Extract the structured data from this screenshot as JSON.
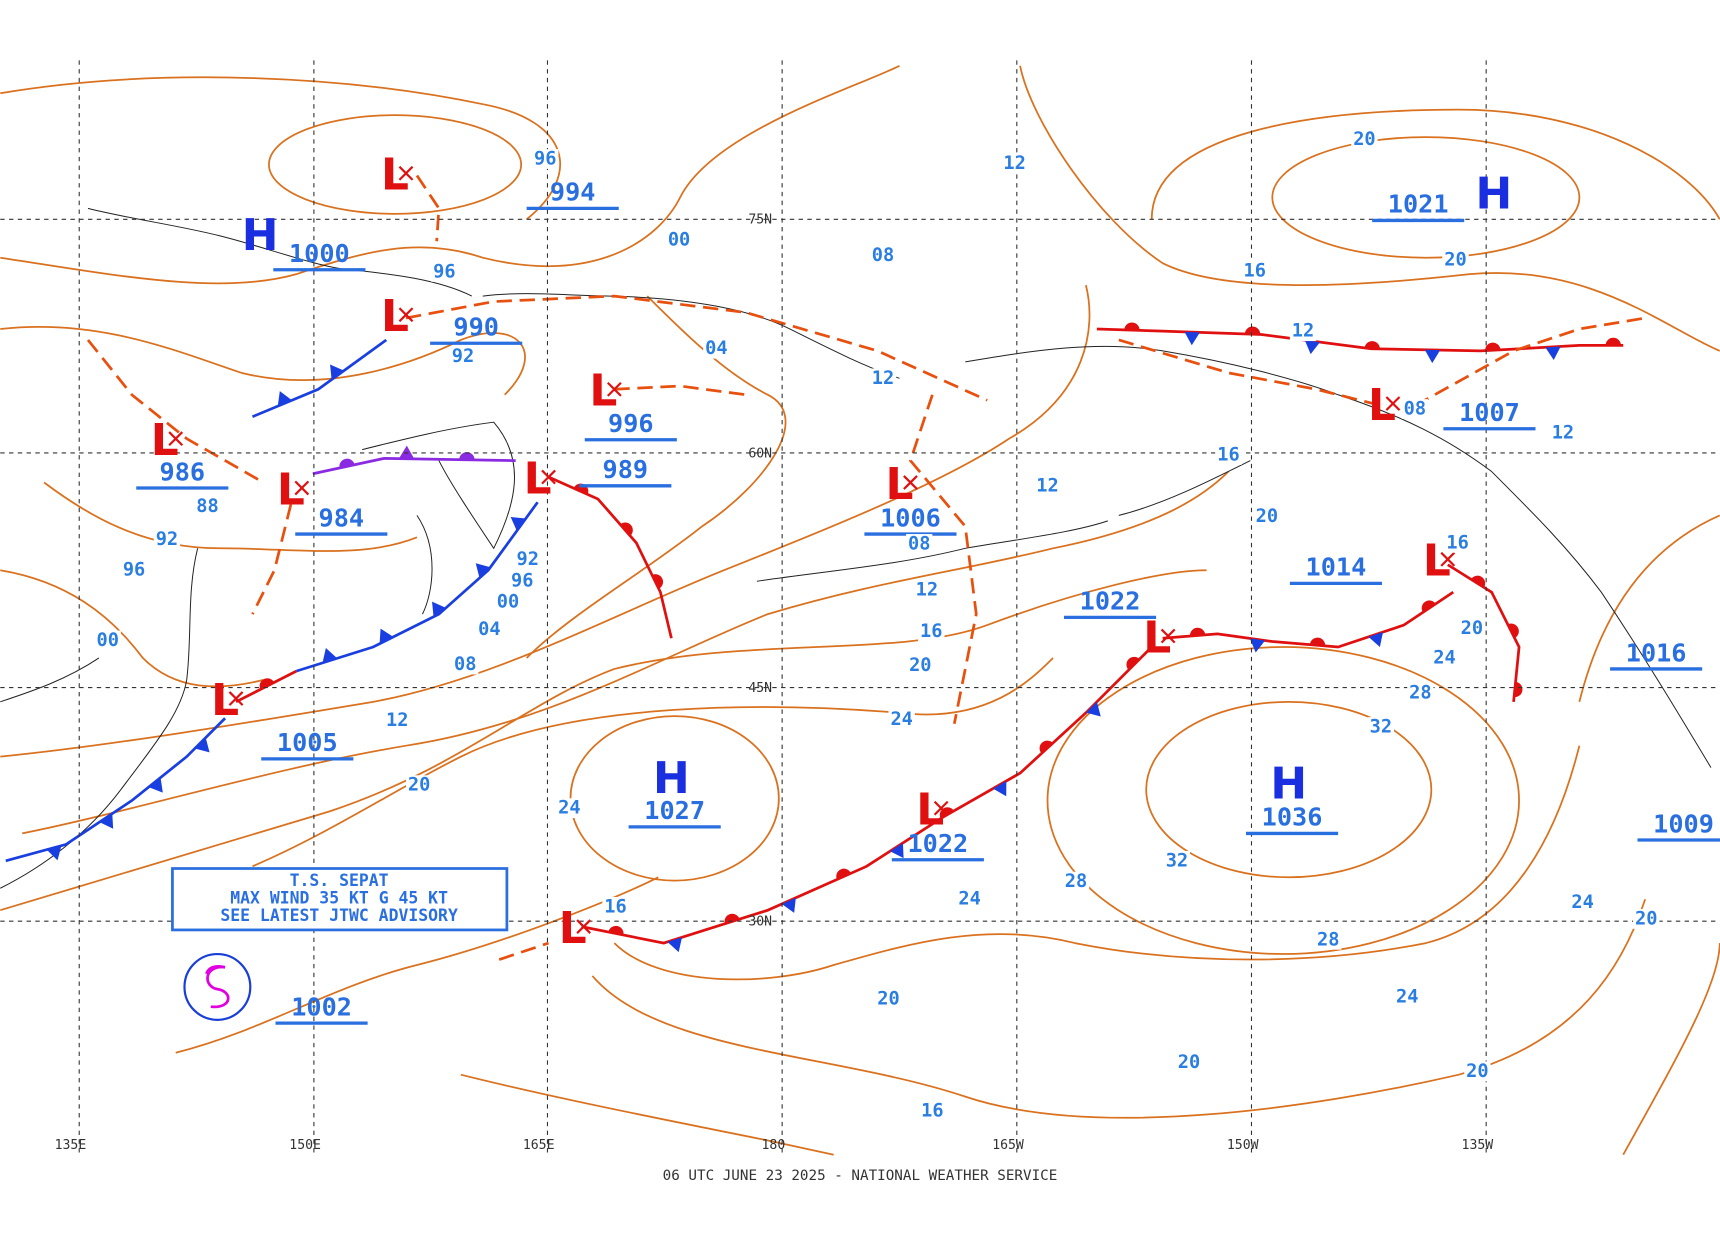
{
  "footer": "06 UTC JUNE 23 2025 - NATIONAL WEATHER SERVICE",
  "advisory": [
    "T.S. SEPAT",
    "MAX WIND 35 KT G 45 KT",
    "SEE LATEST JTWC ADVISORY"
  ],
  "longitudes": [
    "135E",
    "150E",
    "165E",
    "180",
    "165W",
    "150W",
    "135W"
  ],
  "latitudes": [
    "75N",
    "60N",
    "45N",
    "30N"
  ],
  "symbols": [
    "H",
    "L",
    "L",
    "L",
    "L",
    "L",
    "L",
    "L",
    "L",
    "L",
    "L",
    "L",
    "L",
    "L",
    "H",
    "H",
    "H"
  ],
  "pressures": [
    "1000",
    "994",
    "990",
    "986",
    "984",
    "996",
    "989",
    "1006",
    "1022",
    "1014",
    "1007",
    "1021",
    "1016",
    "1005",
    "1027",
    "1022",
    "1036",
    "1002",
    "1009"
  ],
  "isobar_labels": [
    "96",
    "00",
    "96",
    "92",
    "88",
    "92",
    "96",
    "00",
    "04",
    "08",
    "12",
    "12",
    "92",
    "96",
    "00",
    "04",
    "08",
    "12",
    "20",
    "24",
    "16",
    "24",
    "20",
    "16",
    "12",
    "08",
    "16",
    "12",
    "16",
    "12",
    "20",
    "08",
    "12",
    "16",
    "20",
    "24",
    "28",
    "32",
    "28",
    "32",
    "24",
    "28",
    "24",
    "20",
    "24",
    "20",
    "20",
    "20",
    "16",
    "20",
    "20"
  ]
}
